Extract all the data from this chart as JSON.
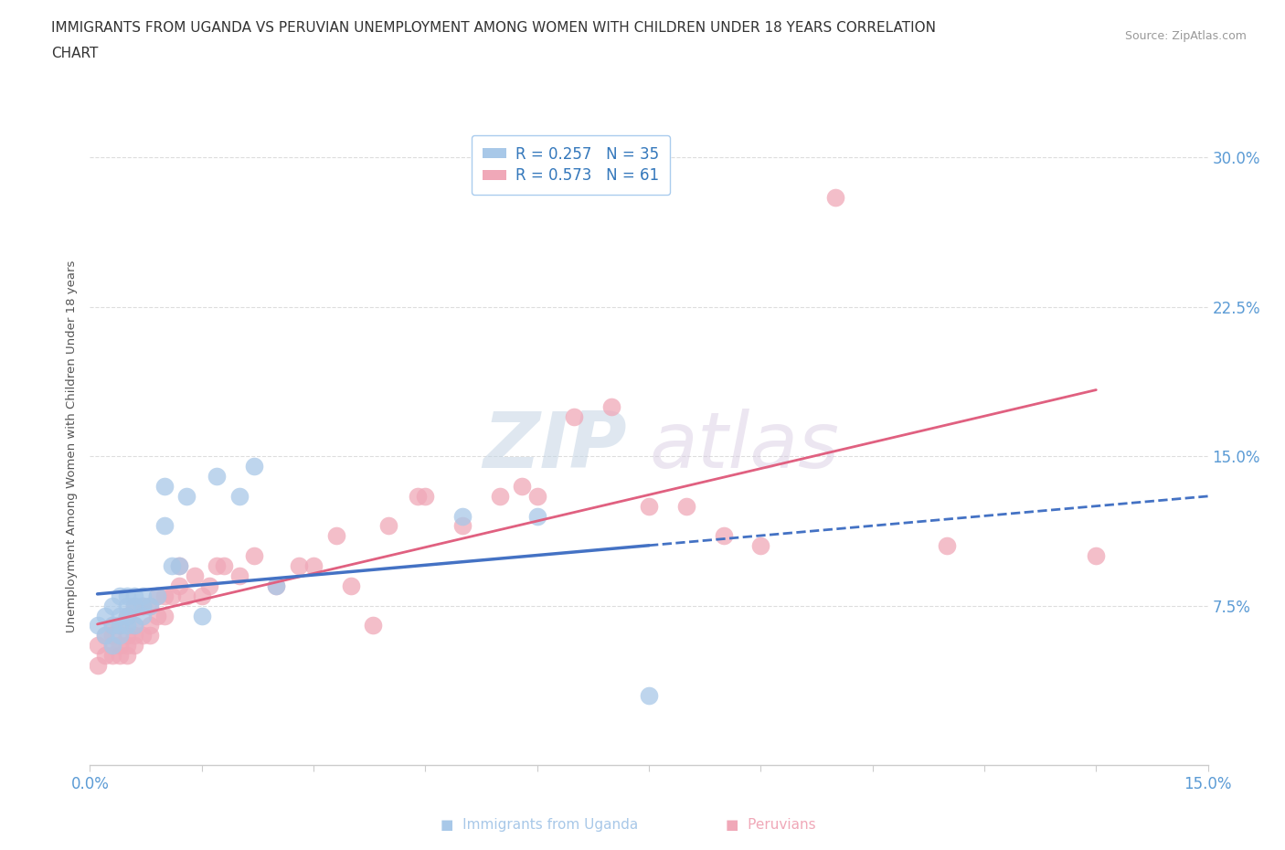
{
  "title_line1": "IMMIGRANTS FROM UGANDA VS PERUVIAN UNEMPLOYMENT AMONG WOMEN WITH CHILDREN UNDER 18 YEARS CORRELATION",
  "title_line2": "CHART",
  "source": "Source: ZipAtlas.com",
  "xlim": [
    0.0,
    0.15
  ],
  "ylim": [
    -0.005,
    0.315
  ],
  "legend_r1": "R = 0.257   N = 35",
  "legend_r2": "R = 0.573   N = 61",
  "color_blue": "#a8c8e8",
  "color_pink": "#f0a8b8",
  "color_blue_line": "#4472c4",
  "color_pink_line": "#e06080",
  "watermark": "ZIPatlas",
  "ytick_vals": [
    0.075,
    0.15,
    0.225,
    0.3
  ],
  "ytick_labels": [
    "7.5%",
    "15.0%",
    "22.5%",
    "30.0%"
  ],
  "xtick_show": [
    0.0,
    0.15
  ],
  "uganda_x": [
    0.001,
    0.002,
    0.002,
    0.003,
    0.003,
    0.003,
    0.004,
    0.004,
    0.004,
    0.004,
    0.005,
    0.005,
    0.005,
    0.005,
    0.006,
    0.006,
    0.006,
    0.007,
    0.007,
    0.007,
    0.008,
    0.009,
    0.01,
    0.01,
    0.011,
    0.012,
    0.013,
    0.015,
    0.017,
    0.02,
    0.022,
    0.025,
    0.05,
    0.06,
    0.075
  ],
  "uganda_y": [
    0.065,
    0.06,
    0.07,
    0.055,
    0.065,
    0.075,
    0.06,
    0.065,
    0.07,
    0.08,
    0.065,
    0.07,
    0.075,
    0.08,
    0.065,
    0.075,
    0.08,
    0.07,
    0.075,
    0.08,
    0.075,
    0.08,
    0.115,
    0.135,
    0.095,
    0.095,
    0.13,
    0.07,
    0.14,
    0.13,
    0.145,
    0.085,
    0.12,
    0.12,
    0.03
  ],
  "peru_x": [
    0.001,
    0.001,
    0.002,
    0.002,
    0.003,
    0.003,
    0.003,
    0.003,
    0.004,
    0.004,
    0.004,
    0.005,
    0.005,
    0.005,
    0.005,
    0.006,
    0.006,
    0.006,
    0.006,
    0.007,
    0.007,
    0.008,
    0.008,
    0.008,
    0.009,
    0.009,
    0.01,
    0.01,
    0.011,
    0.012,
    0.012,
    0.013,
    0.014,
    0.015,
    0.016,
    0.017,
    0.018,
    0.02,
    0.022,
    0.025,
    0.028,
    0.03,
    0.033,
    0.035,
    0.038,
    0.04,
    0.044,
    0.045,
    0.05,
    0.055,
    0.058,
    0.06,
    0.065,
    0.07,
    0.075,
    0.08,
    0.085,
    0.09,
    0.1,
    0.115,
    0.135
  ],
  "peru_y": [
    0.045,
    0.055,
    0.05,
    0.06,
    0.05,
    0.055,
    0.06,
    0.065,
    0.05,
    0.055,
    0.065,
    0.05,
    0.055,
    0.06,
    0.07,
    0.055,
    0.06,
    0.065,
    0.075,
    0.06,
    0.075,
    0.06,
    0.065,
    0.075,
    0.07,
    0.08,
    0.07,
    0.08,
    0.08,
    0.085,
    0.095,
    0.08,
    0.09,
    0.08,
    0.085,
    0.095,
    0.095,
    0.09,
    0.1,
    0.085,
    0.095,
    0.095,
    0.11,
    0.085,
    0.065,
    0.115,
    0.13,
    0.13,
    0.115,
    0.13,
    0.135,
    0.13,
    0.17,
    0.175,
    0.125,
    0.125,
    0.11,
    0.105,
    0.28,
    0.105,
    0.1
  ]
}
